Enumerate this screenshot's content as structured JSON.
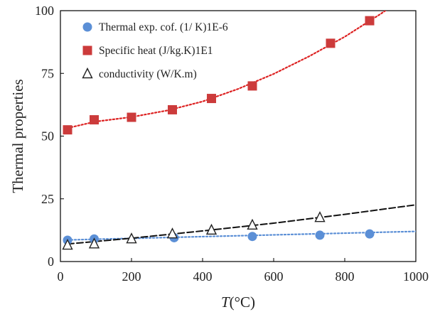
{
  "chart_data": {
    "type": "scatter",
    "title": "",
    "xlabel": {
      "italic": "T",
      "unit": "(°C)"
    },
    "ylabel": "Thermal properties",
    "xlim": [
      0,
      1000
    ],
    "ylim": [
      0,
      100
    ],
    "xticks": [
      "0",
      "200",
      "400",
      "600",
      "800",
      "1000"
    ],
    "yticks": [
      "0",
      "25",
      "50",
      "75",
      "100"
    ],
    "grid": false,
    "legend_position": "top-left",
    "series": [
      {
        "name": "Thermal exp. cof. (1/ K)1E-6",
        "marker": "circle",
        "color": "#5b8fd6",
        "trendline": "dotted",
        "trend_color": "#5b8fd6",
        "x": [
          20,
          95,
          320,
          540,
          730,
          870
        ],
        "y": [
          8.5,
          9.0,
          9.5,
          10.0,
          10.5,
          11.0
        ],
        "trend": [
          [
            20,
            8.6
          ],
          [
            1000,
            12.0
          ]
        ]
      },
      {
        "name": "Specific heat (J/kg.K)1E1",
        "marker": "square",
        "color": "#cc3b3b",
        "trendline": "dotted",
        "trend_color": "#dd2222",
        "x": [
          20,
          95,
          200,
          315,
          425,
          540,
          760,
          870
        ],
        "y": [
          52.5,
          56.5,
          57.5,
          60.5,
          65.0,
          70.0,
          87.0,
          96.0
        ],
        "trend": [
          [
            20,
            53.2
          ],
          [
            100,
            55.8
          ],
          [
            200,
            57.6
          ],
          [
            300,
            60.2
          ],
          [
            400,
            63.8
          ],
          [
            500,
            68.8
          ],
          [
            600,
            74.8
          ],
          [
            700,
            81.8
          ],
          [
            800,
            89.6
          ],
          [
            900,
            98.6
          ],
          [
            930,
            101.5
          ]
        ]
      },
      {
        "name": "conductivity (W/K.m)",
        "marker": "triangle-open",
        "color": "#222222",
        "trendline": "dashed",
        "trend_color": "#111111",
        "x": [
          20,
          95,
          200,
          315,
          425,
          540,
          730
        ],
        "y": [
          6.5,
          7.0,
          9.0,
          11.0,
          12.5,
          14.5,
          17.5
        ],
        "trend": [
          [
            20,
            7.0
          ],
          [
            200,
            9.3
          ],
          [
            400,
            12.2
          ],
          [
            600,
            15.3
          ],
          [
            800,
            18.8
          ],
          [
            1000,
            22.6
          ]
        ]
      }
    ]
  }
}
